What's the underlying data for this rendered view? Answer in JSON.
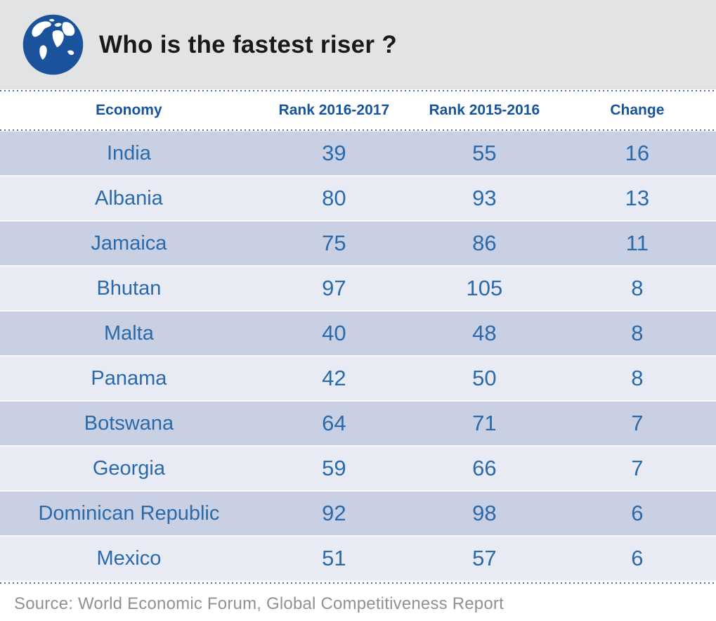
{
  "header": {
    "title": "Who is the fastest riser ?",
    "icon": "globe",
    "background": "#e2e3e5"
  },
  "table": {
    "columns": [
      {
        "key": "economy",
        "label": "Economy"
      },
      {
        "key": "rank_2016_2017",
        "label": "Rank 2016-2017"
      },
      {
        "key": "rank_2015_2016",
        "label": "Rank 2015-2016"
      },
      {
        "key": "change",
        "label": "Change"
      }
    ],
    "rows": [
      {
        "economy": "India",
        "rank_2016_2017": "39",
        "rank_2015_2016": "55",
        "change": "16"
      },
      {
        "economy": "Albania",
        "rank_2016_2017": "80",
        "rank_2015_2016": "93",
        "change": "13"
      },
      {
        "economy": "Jamaica",
        "rank_2016_2017": "75",
        "rank_2015_2016": "86",
        "change": "11"
      },
      {
        "economy": "Bhutan",
        "rank_2016_2017": "97",
        "rank_2015_2016": "105",
        "change": "8"
      },
      {
        "economy": "Malta",
        "rank_2016_2017": "40",
        "rank_2015_2016": "48",
        "change": "8"
      },
      {
        "economy": "Panama",
        "rank_2016_2017": "42",
        "rank_2015_2016": "50",
        "change": "8"
      },
      {
        "economy": "Botswana",
        "rank_2016_2017": "64",
        "rank_2015_2016": "71",
        "change": "7"
      },
      {
        "economy": "Georgia",
        "rank_2016_2017": "59",
        "rank_2015_2016": "66",
        "change": "7"
      },
      {
        "economy": "Dominican Republic",
        "rank_2016_2017": "92",
        "rank_2015_2016": "98",
        "change": "6"
      },
      {
        "economy": "Mexico",
        "rank_2016_2017": "51",
        "rank_2015_2016": "57",
        "change": "6"
      }
    ]
  },
  "footer": {
    "source": "Source: World Economic Forum, Global Competitiveness Report"
  },
  "colors": {
    "band_gray": "#e2e3e5",
    "globe_blue": "#1a529c",
    "row_dark": "#c9d0e3",
    "row_light": "#e9ebf4",
    "value_blue": "#2a6aab",
    "column_header_blue": "#17549e",
    "dots_blue": "#4a6fae",
    "source_gray": "#8f9193",
    "title_black": "#191919"
  },
  "chart_data": {
    "type": "table",
    "title": "Who is the fastest riser ?",
    "columns": [
      "Economy",
      "Rank 2016-2017",
      "Rank 2015-2016",
      "Change"
    ],
    "rows": [
      [
        "India",
        39,
        55,
        16
      ],
      [
        "Albania",
        80,
        93,
        13
      ],
      [
        "Jamaica",
        75,
        86,
        11
      ],
      [
        "Bhutan",
        97,
        105,
        8
      ],
      [
        "Malta",
        40,
        48,
        8
      ],
      [
        "Panama",
        42,
        50,
        8
      ],
      [
        "Botswana",
        64,
        71,
        7
      ],
      [
        "Georgia",
        59,
        66,
        7
      ],
      [
        "Dominican Republic",
        92,
        98,
        6
      ],
      [
        "Mexico",
        51,
        57,
        6
      ]
    ],
    "source": "Source: World Economic Forum, Global Competitiveness Report",
    "layout": {
      "striped": true,
      "first_row_shade": "dark",
      "value_alignment": "center"
    }
  }
}
